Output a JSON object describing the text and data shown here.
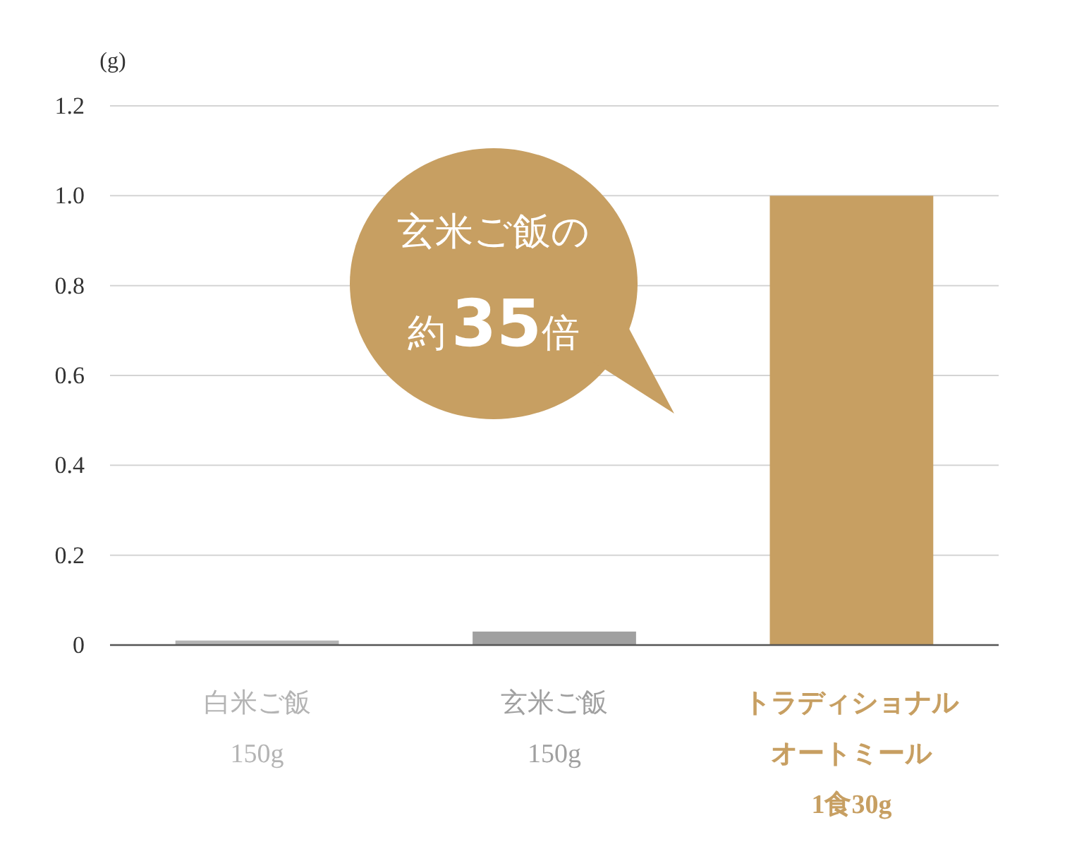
{
  "chart_data": {
    "type": "bar",
    "ylabel": "(g)",
    "categories": [
      "白米ご飯150g",
      "玄米ご飯150g",
      "トラディショナルオートミール1食30g"
    ],
    "values": [
      0.01,
      0.03,
      1.0
    ],
    "colors": [
      "#b4b4b4",
      "#a0a0a0",
      "#c79f62"
    ],
    "ylim": [
      0,
      1.2
    ],
    "yticks": [
      0,
      {
        "value": 0.2,
        "label": "0.2"
      },
      {
        "value": 0.4,
        "label": "0.4"
      },
      {
        "value": 0.6,
        "label": "0.6"
      },
      {
        "value": 0.8,
        "label": "0.8"
      },
      {
        "value": 1,
        "label": "1.0"
      },
      {
        "value": 1.2,
        "label": "1.2"
      }
    ],
    "grid": "y",
    "annotations": [
      "玄米ご飯の",
      "約35倍"
    ]
  }
}
